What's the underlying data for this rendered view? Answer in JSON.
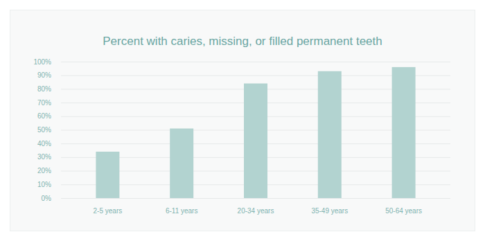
{
  "chart_data": {
    "type": "bar",
    "title": "Percent with caries, missing, or filled permanent teeth",
    "categories": [
      "2-5 years",
      "6-11 years",
      "20-34 years",
      "35-49 years",
      "50-64 years"
    ],
    "values": [
      34,
      51,
      84,
      93,
      96
    ],
    "color": "#b2d3d0",
    "ylim": [
      0,
      100
    ],
    "yticks": [
      {
        "value": 0,
        "label": "0%"
      },
      {
        "value": 10,
        "label": "10%"
      },
      {
        "value": 20,
        "label": "20%"
      },
      {
        "value": 30,
        "label": "30%"
      },
      {
        "value": 40,
        "label": "40%"
      },
      {
        "value": 50,
        "label": "50%"
      },
      {
        "value": 60,
        "label": "60%"
      },
      {
        "value": 70,
        "label": "70%"
      },
      {
        "value": 80,
        "label": "80%"
      },
      {
        "value": 90,
        "label": "90%"
      },
      {
        "value": 100,
        "label": "100%"
      }
    ],
    "grid": true
  }
}
